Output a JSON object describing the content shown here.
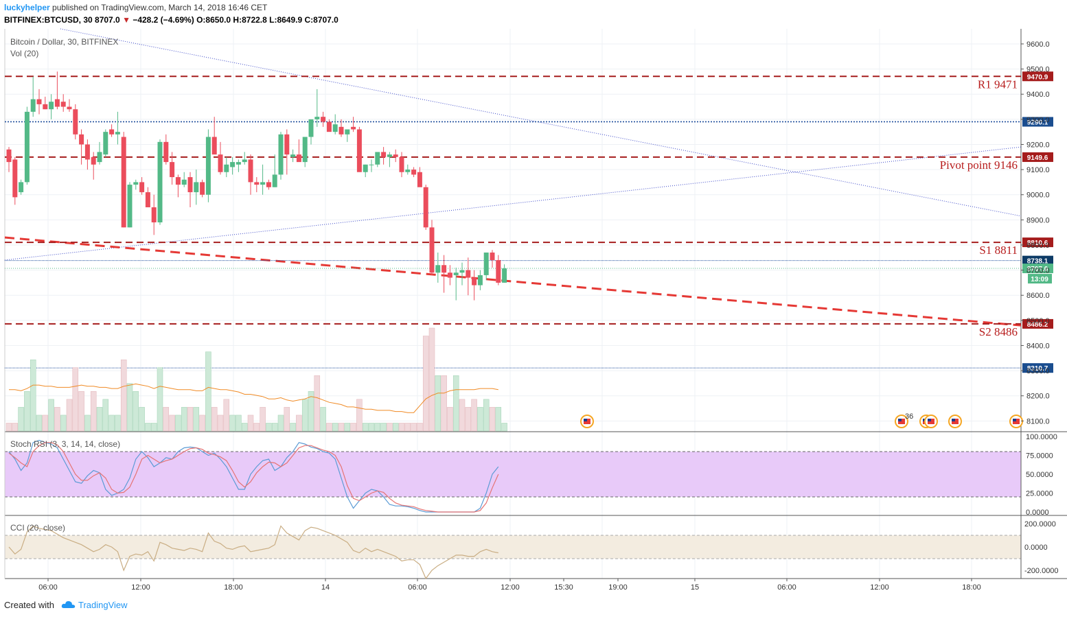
{
  "header": {
    "user": "luckyhelper",
    "published": "published on TradingView.com, March 14, 2018 16:46 CET",
    "symbol_line": "BITFINEX:BTCUSD, 30",
    "price": "8707.0",
    "change": "−428.2 (−4.69%)",
    "ohlc": "O:8650.0 H:8722.8 L:8649.9 C:8707.0"
  },
  "pane_labels": {
    "main": "Bitcoin / Dollar, 30, BITFINEX",
    "volume": "Vol (20)",
    "stoch": "Stoch RSI (3, 3, 14, 14, close)",
    "cci": "CCI (20, close)"
  },
  "footer": {
    "created": "Created with",
    "brand": "TradingView"
  },
  "colors": {
    "up": "#53b987",
    "down": "#eb4d5c",
    "level": "#a51c1c",
    "hline": "#1f4e9c",
    "trend": "#3b48c8",
    "stoch_k": "#5b9bd5",
    "stoch_d": "#e57373",
    "stoch_band": "#e8caf9",
    "cci_band": "#f3ece0",
    "vol_ma": "#f08a24"
  },
  "chart_data": {
    "type": "candlestick",
    "price_axis": {
      "ticks": [
        "9600.0",
        "9500.0",
        "9400.0",
        "9300.0",
        "9200.0",
        "9100.0",
        "9000.0",
        "8900.0",
        "8800.0",
        "8700.0",
        "8600.0",
        "8500.0",
        "8400.0",
        "8300.0",
        "8200.0",
        "8100.0"
      ],
      "range": [
        8060,
        9660
      ]
    },
    "time_axis": {
      "ticks": [
        "06:00",
        "12:00",
        "18:00",
        "14",
        "06:00",
        "12:00",
        "15:30",
        "19:00",
        "15",
        "06:00",
        "12:00",
        "18:00"
      ]
    },
    "levels": [
      {
        "label": "R1 9471",
        "tag": "9470.9",
        "value": 9470.9
      },
      {
        "label": "Pivot point 9146",
        "tag": "9149.6",
        "value": 9149.6
      },
      {
        "label": "S1 8811",
        "tag": "8810.6",
        "value": 8810.6
      },
      {
        "label": "S2 8486",
        "tag": "8486.2",
        "value": 8486.2
      }
    ],
    "hlines": [
      {
        "tag": "9290.1",
        "value": 9290.1
      },
      {
        "tag": "8738.1",
        "value": 8738.1
      },
      {
        "tag": "8310.7",
        "value": 8310.7
      }
    ],
    "last_price": {
      "tag": "8707.0",
      "value": 8707.0,
      "countdown": "13:09"
    },
    "candles_ohlc": [
      [
        9180,
        9190,
        9090,
        9130
      ],
      [
        9140,
        9150,
        8960,
        8990
      ],
      [
        9010,
        9060,
        9000,
        9050
      ],
      [
        9050,
        9350,
        9040,
        9330
      ],
      [
        9330,
        9470,
        9310,
        9380
      ],
      [
        9380,
        9420,
        9320,
        9360
      ],
      [
        9360,
        9390,
        9340,
        9340
      ],
      [
        9340,
        9400,
        9300,
        9370
      ],
      [
        9380,
        9490,
        9340,
        9350
      ],
      [
        9370,
        9400,
        9330,
        9350
      ],
      [
        9350,
        9380,
        9330,
        9340
      ],
      [
        9340,
        9360,
        9220,
        9240
      ],
      [
        9240,
        9260,
        9120,
        9200
      ],
      [
        9200,
        9220,
        9100,
        9140
      ],
      [
        9150,
        9170,
        9060,
        9120
      ],
      [
        9130,
        9210,
        9120,
        9170
      ],
      [
        9160,
        9260,
        9150,
        9250
      ],
      [
        9260,
        9280,
        9230,
        9240
      ],
      [
        9240,
        9330,
        9200,
        9250
      ],
      [
        9230,
        9250,
        8870,
        8870
      ],
      [
        8870,
        9050,
        8870,
        9040
      ],
      [
        9040,
        9060,
        9020,
        9050
      ],
      [
        9050,
        9070,
        9000,
        9010
      ],
      [
        9010,
        9030,
        8960,
        8950
      ],
      [
        8950,
        9000,
        8840,
        8890
      ],
      [
        8890,
        9220,
        8880,
        9210
      ],
      [
        9210,
        9240,
        9120,
        9130
      ],
      [
        9130,
        9170,
        9040,
        9070
      ],
      [
        9070,
        9080,
        8990,
        9040
      ],
      [
        9040,
        9090,
        9030,
        9060
      ],
      [
        9070,
        9090,
        8950,
        9010
      ],
      [
        9010,
        9100,
        8960,
        9050
      ],
      [
        9050,
        9060,
        8990,
        9000
      ],
      [
        9000,
        9260,
        8970,
        9230
      ],
      [
        9230,
        9310,
        9180,
        9160
      ],
      [
        9160,
        9210,
        9080,
        9090
      ],
      [
        9090,
        9150,
        9070,
        9120
      ],
      [
        9110,
        9150,
        9080,
        9130
      ],
      [
        9120,
        9140,
        9090,
        9130
      ],
      [
        9130,
        9170,
        9120,
        9140
      ],
      [
        9140,
        9160,
        9000,
        9050
      ],
      [
        9050,
        9070,
        9010,
        9040
      ],
      [
        9040,
        9120,
        9000,
        9050
      ],
      [
        9050,
        9060,
        9020,
        9030
      ],
      [
        9030,
        9160,
        9030,
        9080
      ],
      [
        9080,
        9250,
        9060,
        9240
      ],
      [
        9240,
        9260,
        9080,
        9160
      ],
      [
        9150,
        9180,
        9130,
        9160
      ],
      [
        9160,
        9220,
        9140,
        9130
      ],
      [
        9130,
        9230,
        9110,
        9230
      ],
      [
        9230,
        9290,
        9200,
        9300
      ],
      [
        9300,
        9420,
        9270,
        9310
      ],
      [
        9310,
        9330,
        9270,
        9290
      ],
      [
        9290,
        9300,
        9260,
        9250
      ],
      [
        9250,
        9320,
        9240,
        9280
      ],
      [
        9270,
        9300,
        9230,
        9240
      ],
      [
        9240,
        9260,
        9210,
        9260
      ],
      [
        9270,
        9310,
        9250,
        9260
      ],
      [
        9260,
        9270,
        9180,
        9090
      ],
      [
        9090,
        9120,
        9070,
        9120
      ],
      [
        9120,
        9140,
        9090,
        9120
      ],
      [
        9120,
        9160,
        9110,
        9170
      ],
      [
        9170,
        9190,
        9120,
        9150
      ],
      [
        9150,
        9170,
        9110,
        9160
      ],
      [
        9160,
        9180,
        9130,
        9150
      ],
      [
        9150,
        9170,
        9070,
        9090
      ],
      [
        9090,
        9120,
        9080,
        9100
      ],
      [
        9100,
        9110,
        9070,
        9080
      ],
      [
        9090,
        9110,
        9050,
        9030
      ],
      [
        9030,
        9040,
        8860,
        8870
      ],
      [
        8870,
        8900,
        8680,
        8690
      ],
      [
        8690,
        8770,
        8650,
        8720
      ],
      [
        8720,
        8760,
        8610,
        8690
      ],
      [
        8690,
        8720,
        8640,
        8670
      ],
      [
        8680,
        8710,
        8580,
        8690
      ],
      [
        8690,
        8730,
        8640,
        8700
      ],
      [
        8700,
        8750,
        8600,
        8670
      ],
      [
        8670,
        8700,
        8580,
        8640
      ],
      [
        8640,
        8700,
        8620,
        8680
      ],
      [
        8680,
        8770,
        8660,
        8770
      ],
      [
        8770,
        8780,
        8710,
        8740
      ],
      [
        8740,
        8760,
        8640,
        8650
      ],
      [
        8650,
        8723,
        8650,
        8707
      ]
    ],
    "volume": [
      [
        1,
        false
      ],
      [
        1,
        false
      ],
      [
        3,
        true
      ],
      [
        5,
        true
      ],
      [
        9,
        true
      ],
      [
        2,
        true
      ],
      [
        2,
        false
      ],
      [
        4,
        true
      ],
      [
        3,
        false
      ],
      [
        2,
        true
      ],
      [
        4,
        false
      ],
      [
        8,
        false
      ],
      [
        5,
        false
      ],
      [
        2,
        true
      ],
      [
        5,
        false
      ],
      [
        3,
        true
      ],
      [
        4,
        true
      ],
      [
        2,
        true
      ],
      [
        2,
        true
      ],
      [
        9,
        false
      ],
      [
        6,
        true
      ],
      [
        5,
        true
      ],
      [
        3,
        true
      ],
      [
        1,
        true
      ],
      [
        1,
        true
      ],
      [
        8,
        true
      ],
      [
        3,
        false
      ],
      [
        2,
        false
      ],
      [
        2,
        true
      ],
      [
        3,
        true
      ],
      [
        3,
        false
      ],
      [
        3,
        true
      ],
      [
        2,
        false
      ],
      [
        10,
        true
      ],
      [
        3,
        false
      ],
      [
        2,
        false
      ],
      [
        4,
        false
      ],
      [
        2,
        true
      ],
      [
        2,
        true
      ],
      [
        1,
        true
      ],
      [
        2,
        false
      ],
      [
        1,
        false
      ],
      [
        3,
        false
      ],
      [
        1,
        true
      ],
      [
        1,
        true
      ],
      [
        2,
        true
      ],
      [
        3,
        false
      ],
      [
        1,
        true
      ],
      [
        2,
        false
      ],
      [
        4,
        true
      ],
      [
        5,
        true
      ],
      [
        7,
        false
      ],
      [
        3,
        true
      ],
      [
        1,
        false
      ],
      [
        1,
        true
      ],
      [
        1,
        false
      ],
      [
        1,
        true
      ],
      [
        1,
        false
      ],
      [
        4,
        false
      ],
      [
        1,
        true
      ],
      [
        1,
        true
      ],
      [
        1,
        true
      ],
      [
        1,
        true
      ],
      [
        1,
        false
      ],
      [
        1,
        true
      ],
      [
        1,
        false
      ],
      [
        1,
        false
      ],
      [
        1,
        false
      ],
      [
        1,
        false
      ],
      [
        12,
        false
      ],
      [
        13,
        false
      ],
      [
        7,
        true
      ],
      [
        7,
        false
      ],
      [
        3,
        false
      ],
      [
        7,
        true
      ],
      [
        4,
        false
      ],
      [
        3,
        false
      ],
      [
        4,
        false
      ],
      [
        3,
        true
      ],
      [
        4,
        true
      ],
      [
        3,
        false
      ],
      [
        3,
        true
      ],
      [
        1,
        true
      ]
    ],
    "volume_ma": [
      3.6,
      3.6,
      3.5,
      3.7,
      4.0,
      4.0,
      3.9,
      3.9,
      3.8,
      3.8,
      3.8,
      3.9,
      4.0,
      3.9,
      3.9,
      3.8,
      3.8,
      3.7,
      3.7,
      3.9,
      4.0,
      4.1,
      4.0,
      3.9,
      3.7,
      3.9,
      3.8,
      3.7,
      3.6,
      3.6,
      3.6,
      3.5,
      3.5,
      3.8,
      3.7,
      3.6,
      3.6,
      3.5,
      3.4,
      3.2,
      3.2,
      3.1,
      3.0,
      2.8,
      2.8,
      2.9,
      2.7,
      2.6,
      2.7,
      2.8,
      3.0,
      2.9,
      2.7,
      2.5,
      2.4,
      2.3,
      2.1,
      2.1,
      2.0,
      1.9,
      1.9,
      1.8,
      1.8,
      1.8,
      1.7,
      1.7,
      1.6,
      1.6,
      2.2,
      2.8,
      3.1,
      3.3,
      3.3,
      3.5,
      3.6,
      3.6,
      3.6,
      3.6,
      3.7,
      3.7,
      3.7,
      3.6
    ],
    "stoch_ticks": [
      "100.0000",
      "75.0000",
      "50.0000",
      "25.0000",
      "0.0000"
    ],
    "stoch_k": [
      80,
      70,
      55,
      65,
      92,
      95,
      92,
      90,
      85,
      70,
      55,
      40,
      38,
      48,
      55,
      52,
      30,
      22,
      25,
      30,
      45,
      70,
      80,
      72,
      60,
      65,
      72,
      70,
      80,
      85,
      86,
      85,
      80,
      75,
      78,
      70,
      60,
      45,
      30,
      30,
      50,
      60,
      68,
      70,
      55,
      60,
      72,
      80,
      92,
      90,
      86,
      84,
      80,
      78,
      70,
      45,
      20,
      5,
      15,
      25,
      30,
      28,
      20,
      10,
      8,
      8,
      7,
      5,
      2,
      0,
      0,
      0,
      0,
      0,
      0,
      0,
      0,
      0,
      5,
      25,
      50,
      60
    ],
    "stoch_d": [
      78,
      72,
      65,
      60,
      80,
      88,
      92,
      92,
      89,
      80,
      65,
      50,
      42,
      42,
      48,
      52,
      45,
      30,
      25,
      26,
      33,
      50,
      70,
      75,
      70,
      65,
      68,
      70,
      75,
      80,
      84,
      85,
      83,
      78,
      76,
      73,
      68,
      55,
      40,
      33,
      40,
      52,
      60,
      66,
      65,
      60,
      65,
      75,
      85,
      88,
      88,
      85,
      82,
      80,
      75,
      60,
      35,
      18,
      15,
      20,
      25,
      28,
      26,
      18,
      12,
      9,
      8,
      7,
      4,
      2,
      1,
      0,
      0,
      0,
      0,
      0,
      0,
      0,
      2,
      12,
      32,
      50
    ],
    "cci_ticks": [
      "200.0000",
      "0.0000",
      "-200.0000"
    ],
    "cci": [
      0,
      -60,
      -20,
      130,
      180,
      160,
      150,
      140,
      110,
      80,
      60,
      40,
      20,
      -10,
      -40,
      -20,
      20,
      0,
      -40,
      -200,
      -80,
      -60,
      -70,
      -40,
      -120,
      40,
      20,
      -10,
      -20,
      -30,
      -10,
      -20,
      -40,
      120,
      50,
      30,
      -10,
      -20,
      0,
      10,
      -40,
      -30,
      -20,
      -10,
      20,
      180,
      120,
      90,
      60,
      140,
      170,
      160,
      140,
      120,
      100,
      70,
      40,
      -30,
      -50,
      -10,
      -40,
      -20,
      -40,
      -60,
      -80,
      -120,
      -110,
      -110,
      -150,
      -270,
      -200,
      -160,
      -130,
      -100,
      -70,
      -70,
      -80,
      -80,
      -40,
      -20,
      -40,
      -50
    ]
  }
}
